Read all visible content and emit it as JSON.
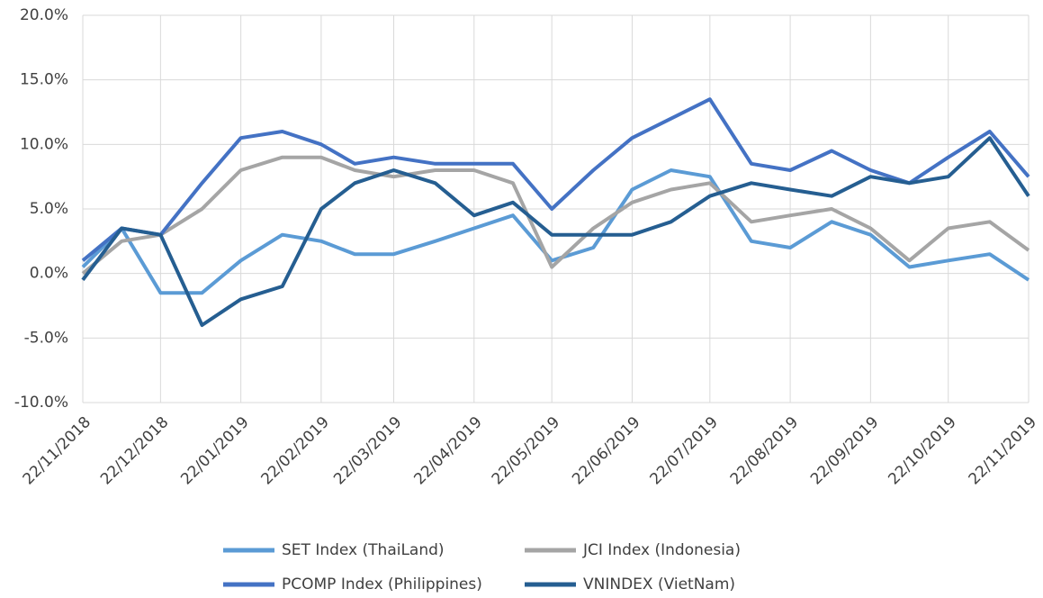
{
  "chart_data": {
    "type": "line",
    "x": [
      "2018-11-22",
      "2018-12-07",
      "2018-12-22",
      "2019-01-07",
      "2019-01-22",
      "2019-02-07",
      "2019-02-22",
      "2019-03-07",
      "2019-03-22",
      "2019-04-07",
      "2019-04-22",
      "2019-05-07",
      "2019-05-22",
      "2019-06-07",
      "2019-06-22",
      "2019-07-07",
      "2019-07-22",
      "2019-08-07",
      "2019-08-22",
      "2019-09-07",
      "2019-09-22",
      "2019-10-07",
      "2019-10-22",
      "2019-11-07",
      "2019-11-22"
    ],
    "series": [
      {
        "name": "SET Index (ThaiLand)",
        "color": "#5b9bd5",
        "values": [
          0.5,
          3.5,
          -1.5,
          -1.5,
          1.0,
          3.0,
          2.5,
          1.5,
          1.5,
          2.5,
          3.5,
          4.5,
          1.0,
          2.0,
          6.5,
          8.0,
          7.5,
          2.5,
          2.0,
          4.0,
          3.0,
          0.5,
          1.0,
          1.5,
          -0.5
        ]
      },
      {
        "name": "JCI Index (Indonesia)",
        "color": "#a5a5a5",
        "values": [
          0.0,
          2.5,
          3.0,
          5.0,
          8.0,
          9.0,
          9.0,
          8.0,
          7.5,
          8.0,
          8.0,
          7.0,
          0.5,
          3.5,
          5.5,
          6.5,
          7.0,
          4.0,
          4.5,
          5.0,
          3.5,
          1.0,
          3.5,
          4.0,
          1.8
        ]
      },
      {
        "name": "PCOMP Index (Philippines)",
        "color": "#4472c4",
        "values": [
          1.0,
          3.5,
          3.0,
          7.0,
          10.5,
          11.0,
          10.0,
          8.5,
          9.0,
          8.5,
          8.5,
          8.5,
          5.0,
          8.0,
          10.5,
          12.0,
          13.5,
          8.5,
          8.0,
          9.5,
          8.0,
          7.0,
          9.0,
          11.0,
          7.5
        ]
      },
      {
        "name": "VNINDEX (VietNam)",
        "color": "#255e91",
        "values": [
          -0.5,
          3.5,
          3.0,
          -4.0,
          -2.0,
          -1.0,
          5.0,
          7.0,
          8.0,
          7.0,
          4.5,
          5.5,
          3.0,
          3.0,
          3.0,
          4.0,
          6.0,
          7.0,
          6.5,
          6.0,
          7.5,
          7.0,
          7.5,
          10.5,
          6.0
        ]
      }
    ],
    "ylim": [
      -10,
      20
    ],
    "yticks": [
      {
        "value": -10,
        "label": "-10.0%"
      },
      {
        "value": -5,
        "label": "-5.0%"
      },
      {
        "value": 0,
        "label": "0.0%"
      },
      {
        "value": 5,
        "label": "5.0%"
      },
      {
        "value": 10,
        "label": "10.0%"
      },
      {
        "value": 15,
        "label": "15.0%"
      },
      {
        "value": 20,
        "label": "20.0%"
      }
    ],
    "xlim": [
      "2018-11-22",
      "2019-11-22"
    ],
    "xticks": [
      {
        "value": "2018-11-22",
        "label": "22/11/2018"
      },
      {
        "value": "2018-12-22",
        "label": "22/12/2018"
      },
      {
        "value": "2019-01-22",
        "label": "22/01/2019"
      },
      {
        "value": "2019-02-22",
        "label": "22/02/2019"
      },
      {
        "value": "2019-03-22",
        "label": "22/03/2019"
      },
      {
        "value": "2019-04-22",
        "label": "22/04/2019"
      },
      {
        "value": "2019-05-22",
        "label": "22/05/2019"
      },
      {
        "value": "2019-06-22",
        "label": "22/06/2019"
      },
      {
        "value": "2019-07-22",
        "label": "22/07/2019"
      },
      {
        "value": "2019-08-22",
        "label": "22/08/2019"
      },
      {
        "value": "2019-09-22",
        "label": "22/09/2019"
      },
      {
        "value": "2019-10-22",
        "label": "22/10/2019"
      },
      {
        "value": "2019-11-22",
        "label": "22/11/2019"
      }
    ],
    "grid": true,
    "legend": "bottom"
  }
}
